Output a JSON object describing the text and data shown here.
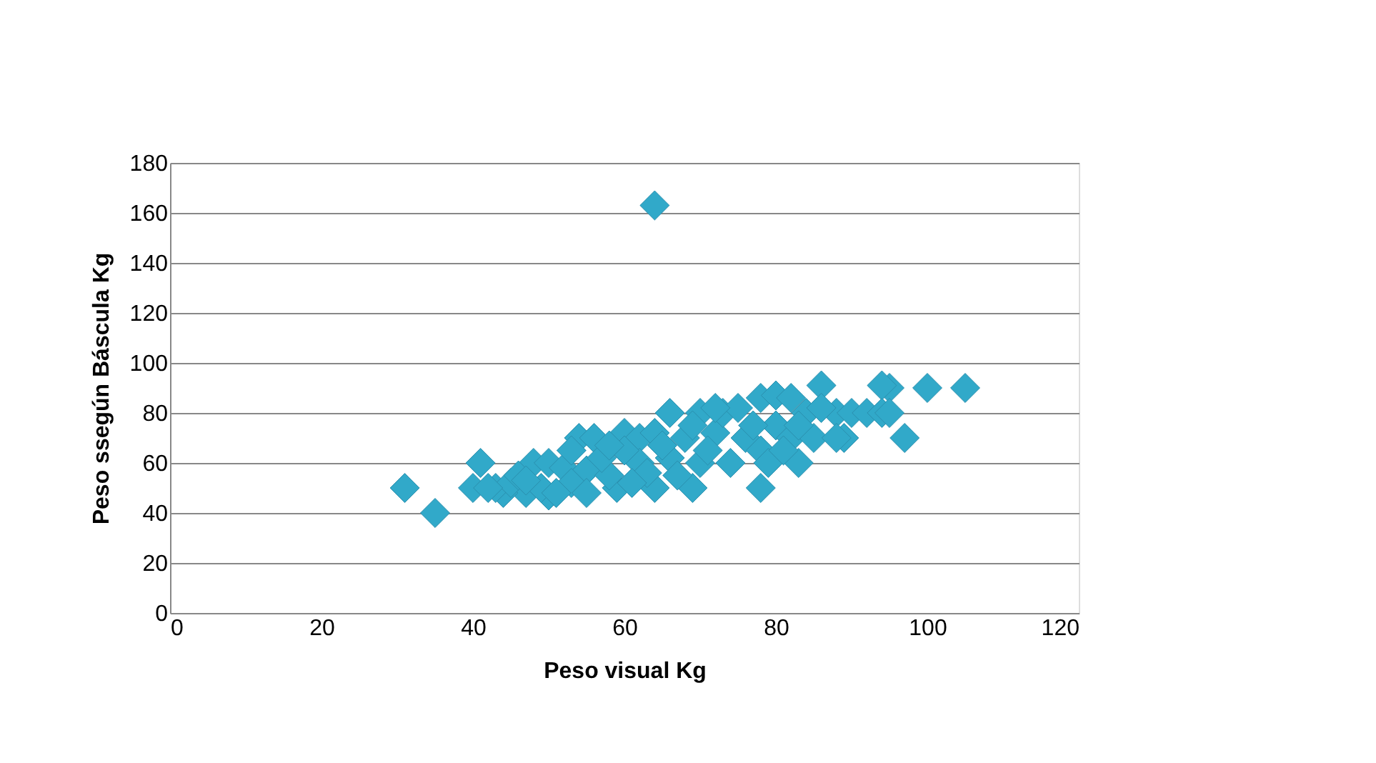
{
  "chart_data": {
    "type": "scatter",
    "xlabel": "Peso visual Kg",
    "ylabel": "Peso ssegún Báscula Kg",
    "x": [
      31,
      35,
      41,
      64,
      105,
      100,
      95,
      94,
      86,
      97,
      89,
      83,
      78,
      69,
      64,
      59,
      50,
      47,
      44,
      40,
      43,
      45,
      48,
      50,
      52,
      54,
      56,
      55,
      58,
      60,
      62,
      64,
      66,
      68,
      70,
      70,
      72,
      73,
      75,
      76,
      78,
      78,
      80,
      80,
      82,
      82,
      84,
      85,
      88,
      90,
      92,
      94,
      95,
      66,
      62,
      57,
      53,
      49,
      46,
      51,
      55,
      60,
      67,
      71,
      74,
      77,
      79,
      81,
      83,
      86,
      88,
      72,
      69,
      65,
      63,
      58,
      61,
      53,
      47,
      42
    ],
    "series": [
      {
        "color": "#31a9c9",
        "values": [
          50,
          40,
          60,
          163,
          90,
          90,
          90,
          91,
          91,
          70,
          70,
          60,
          50,
          50,
          50,
          50,
          47,
          48,
          48,
          50,
          50,
          52,
          60,
          60,
          58,
          70,
          70,
          57,
          55,
          72,
          70,
          72,
          80,
          70,
          80,
          60,
          72,
          80,
          82,
          70,
          86,
          65,
          87,
          75,
          86,
          70,
          80,
          70,
          80,
          80,
          80,
          80,
          80,
          62,
          60,
          62,
          52,
          50,
          55,
          48,
          48,
          65,
          55,
          65,
          60,
          75,
          60,
          65,
          75,
          82,
          70,
          82,
          75,
          67,
          56,
          67,
          52,
          65,
          53,
          50
        ]
      }
    ],
    "xlim": [
      0,
      120
    ],
    "xticks": [
      0,
      20,
      40,
      60,
      80,
      100,
      120
    ],
    "ylim": [
      0,
      180
    ],
    "yticks": [
      0,
      20,
      40,
      60,
      80,
      100,
      120,
      140,
      160,
      180
    ],
    "grid": "y",
    "marker": "diamond"
  }
}
